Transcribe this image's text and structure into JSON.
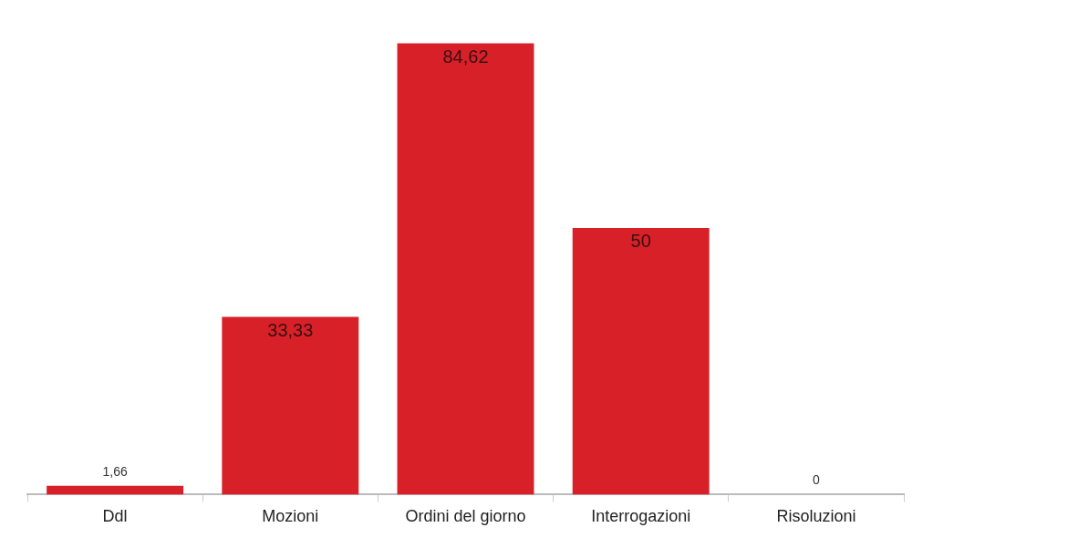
{
  "chart_data": {
    "type": "bar",
    "categories": [
      "Ddl",
      "Mozioni",
      "Ordini del giorno",
      "Interrogazioni",
      "Risoluzioni"
    ],
    "values": [
      1.66,
      33.33,
      84.62,
      50,
      0
    ],
    "color": "#d82029",
    "value_labels": [
      "1,66",
      "33,33",
      "84,62",
      "50",
      "0"
    ],
    "grid": false,
    "legend": false
  }
}
